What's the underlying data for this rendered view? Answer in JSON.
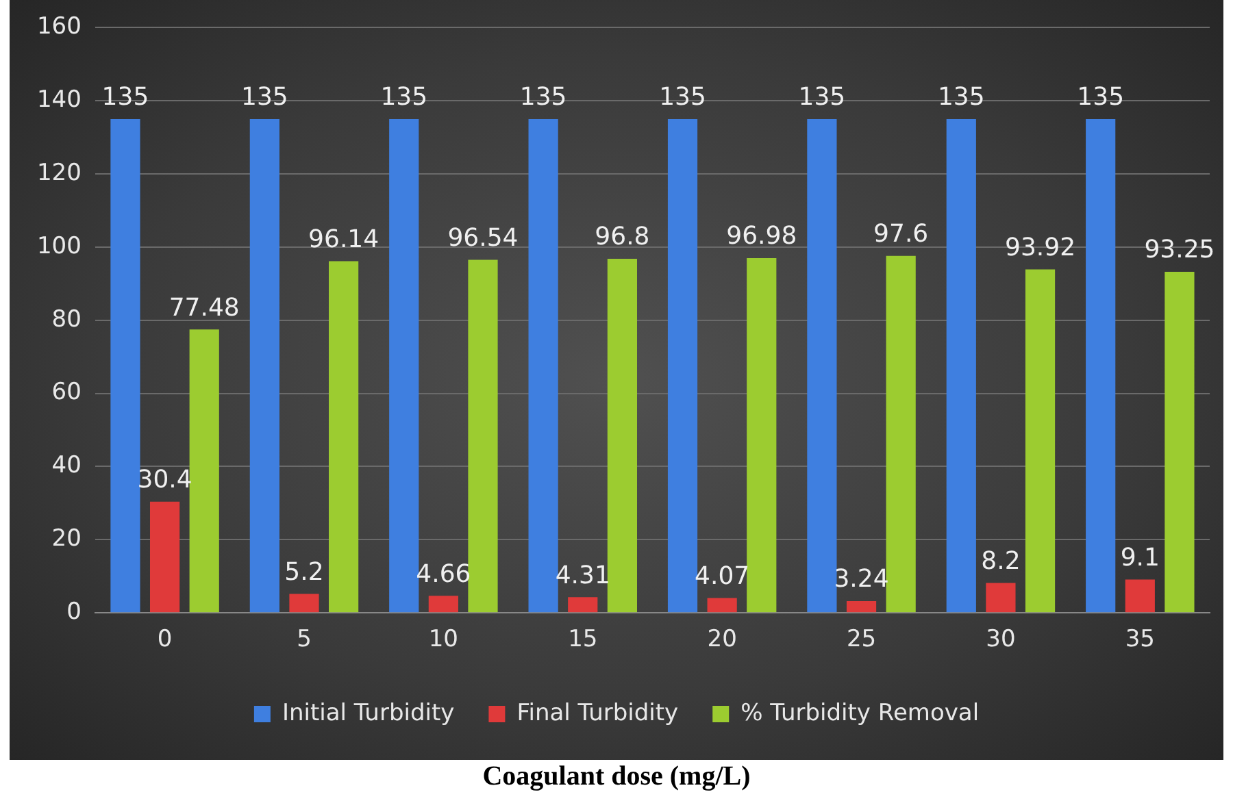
{
  "chart_data": {
    "type": "bar",
    "xlabel": "Coagulant dose (mg/L)",
    "categories": [
      "0",
      "5",
      "10",
      "15",
      "20",
      "25",
      "30",
      "35"
    ],
    "series": [
      {
        "name": "Initial Turbidity",
        "color": "#3f7fe0",
        "values": [
          135,
          135,
          135,
          135,
          135,
          135,
          135,
          135
        ]
      },
      {
        "name": "Final Turbidity",
        "color": "#e03a3a",
        "values": [
          30.4,
          5.2,
          4.66,
          4.31,
          4.07,
          3.24,
          8.2,
          9.1
        ]
      },
      {
        "name": "% Turbidity Removal",
        "color": "#9ccc30",
        "values": [
          77.48,
          96.14,
          96.54,
          96.8,
          96.98,
          97.6,
          93.92,
          93.25
        ]
      }
    ],
    "ylim": [
      0,
      160
    ],
    "yticks": [
      0,
      20,
      40,
      60,
      80,
      100,
      120,
      140,
      160
    ],
    "grid": "y",
    "legend": "bottom",
    "data_labels": true
  }
}
